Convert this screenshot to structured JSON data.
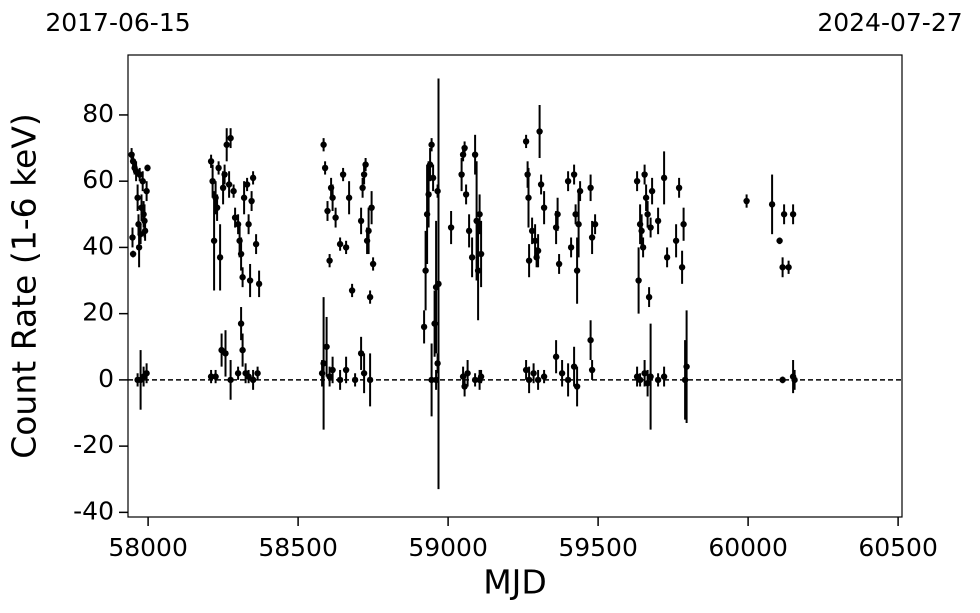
{
  "chart_data": {
    "type": "errorbar",
    "xlabel": "MJD",
    "ylabel": "Count Rate (1-6 keV)",
    "annotations": [
      "2017-06-15",
      "2024-07-27"
    ],
    "xlim": [
      57933,
      60513
    ],
    "ylim": [
      -41.4,
      98.1
    ],
    "xticks": [
      58000,
      58500,
      59000,
      59500,
      60000,
      60500
    ],
    "yticks": [
      -40,
      -20,
      0,
      20,
      40,
      60,
      80
    ],
    "reference_line": 0,
    "color": "#000000",
    "x": [
      57945,
      57950,
      57955,
      57948,
      57950,
      57960,
      57965,
      57968,
      57970,
      57972,
      57975,
      57978,
      57982,
      57985,
      57988,
      57990,
      57995,
      57998,
      57965,
      57975,
      57985,
      57995,
      58210,
      58215,
      58220,
      58225,
      58230,
      58235,
      58240,
      58250,
      58255,
      58262,
      58270,
      58275,
      58285,
      58290,
      58300,
      58305,
      58310,
      58315,
      58320,
      58330,
      58335,
      58340,
      58345,
      58350,
      58360,
      58370,
      58210,
      58225,
      58245,
      58258,
      58275,
      58300,
      58310,
      58315,
      58325,
      58335,
      58350,
      58365,
      58585,
      58590,
      58598,
      58605,
      58610,
      58615,
      58625,
      58640,
      58650,
      58660,
      58670,
      58680,
      58710,
      58715,
      58720,
      58725,
      58730,
      58735,
      58740,
      58745,
      58750,
      58580,
      58585,
      58595,
      58605,
      58615,
      58640,
      58660,
      58690,
      58710,
      58720,
      58740,
      58920,
      58925,
      58930,
      58935,
      58940,
      58945,
      58950,
      58955,
      58960,
      58945,
      58960,
      58965,
      58968,
      58965,
      59010,
      59045,
      59050,
      59055,
      59060,
      59070,
      59080,
      59090,
      59095,
      59100,
      59105,
      59110,
      59050,
      59055,
      59065,
      59090,
      59105,
      59110,
      59260,
      59265,
      59268,
      59270,
      59280,
      59290,
      59295,
      59300,
      59305,
      59310,
      59320,
      59260,
      59270,
      59285,
      59300,
      59320,
      59360,
      59365,
      59370,
      59400,
      59410,
      59420,
      59425,
      59430,
      59435,
      59440,
      59475,
      59480,
      59490,
      59360,
      59380,
      59400,
      59420,
      59430,
      59475,
      59480,
      59630,
      59635,
      59640,
      59645,
      59650,
      59655,
      59660,
      59665,
      59670,
      59675,
      59680,
      59700,
      59720,
      59730,
      59760,
      59770,
      59780,
      59785,
      59630,
      59640,
      59655,
      59665,
      59675,
      59700,
      59720,
      59790,
      59795,
      59995,
      60080,
      60105,
      60115,
      60120,
      60135,
      60150,
      60115,
      60150,
      60155
    ],
    "values": [
      68,
      66,
      64,
      43,
      38,
      63,
      55,
      47,
      40,
      62,
      44,
      52,
      60,
      50,
      48,
      45,
      57,
      64,
      0,
      0,
      1,
      2,
      66,
      60,
      42,
      55,
      52,
      64,
      37,
      58,
      62,
      71,
      59,
      73,
      57,
      49,
      47,
      42,
      38,
      31,
      55,
      59,
      47,
      30,
      54,
      61,
      41,
      29,
      1,
      1,
      9,
      8,
      0,
      2,
      17,
      9,
      2,
      1,
      0,
      2,
      71,
      64,
      51,
      36,
      58,
      55,
      49,
      41,
      62,
      40,
      55,
      27,
      48,
      58,
      62,
      65,
      42,
      45,
      25,
      52,
      35,
      2,
      5,
      10,
      1,
      3,
      0,
      3,
      0,
      8,
      2,
      0,
      16,
      33,
      50,
      56,
      65,
      71,
      61,
      17,
      28,
      0,
      0,
      57,
      29,
      5,
      46,
      62,
      68,
      70,
      56,
      45,
      37,
      68,
      48,
      33,
      50,
      38,
      1,
      -2,
      2,
      0,
      0,
      1,
      72,
      62,
      55,
      36,
      45,
      42,
      37,
      39,
      75,
      59,
      52,
      3,
      0,
      2,
      0,
      1,
      46,
      50,
      35,
      60,
      40,
      62,
      50,
      33,
      47,
      57,
      58,
      43,
      47,
      7,
      2,
      0,
      4,
      -2,
      12,
      3,
      60,
      30,
      47,
      45,
      40,
      62,
      55,
      50,
      25,
      46,
      57,
      48,
      61,
      37,
      42,
      58,
      34,
      47,
      1,
      0,
      2,
      -1,
      1,
      0,
      1,
      0,
      4,
      54,
      53,
      42,
      34,
      50,
      34,
      50,
      0,
      1,
      0
    ],
    "errors": [
      2,
      2,
      2,
      3,
      1,
      3,
      4,
      3,
      6,
      2,
      3,
      4,
      3,
      4,
      5,
      3,
      3,
      1,
      2,
      9,
      3,
      3,
      2,
      5,
      15,
      5,
      4,
      2,
      10,
      5,
      3,
      5,
      4,
      3,
      2,
      3,
      3,
      5,
      5,
      3,
      5,
      2,
      3,
      5,
      3,
      2,
      3,
      4,
      2,
      2,
      5,
      7,
      6,
      2,
      5,
      5,
      3,
      2,
      3,
      2,
      2,
      2,
      3,
      2,
      3,
      4,
      3,
      2,
      2,
      2,
      5,
      2,
      4,
      3,
      3,
      2,
      4,
      7,
      2,
      5,
      2,
      4,
      20,
      9,
      3,
      4,
      3,
      4,
      2,
      5,
      6,
      8,
      5,
      12,
      15,
      10,
      5,
      2,
      4,
      10,
      20,
      11,
      3,
      2,
      62,
      3,
      5,
      5,
      2,
      2,
      3,
      5,
      6,
      6,
      18,
      15,
      6,
      10,
      3,
      3,
      4,
      2,
      3,
      2,
      2,
      4,
      9,
      5,
      4,
      5,
      3,
      5,
      8,
      3,
      5,
      3,
      4,
      3,
      3,
      2,
      5,
      5,
      3,
      3,
      3,
      3,
      3,
      10,
      10,
      3,
      4,
      5,
      3,
      5,
      4,
      5,
      6,
      6,
      6,
      3,
      3,
      10,
      6,
      5,
      3,
      3,
      4,
      4,
      3,
      3,
      4,
      4,
      8,
      3,
      5,
      3,
      5,
      5,
      3,
      2,
      4,
      4,
      16,
      2,
      3,
      12,
      17,
      2,
      9,
      1,
      3,
      3,
      2,
      3,
      1,
      5,
      3
    ]
  }
}
